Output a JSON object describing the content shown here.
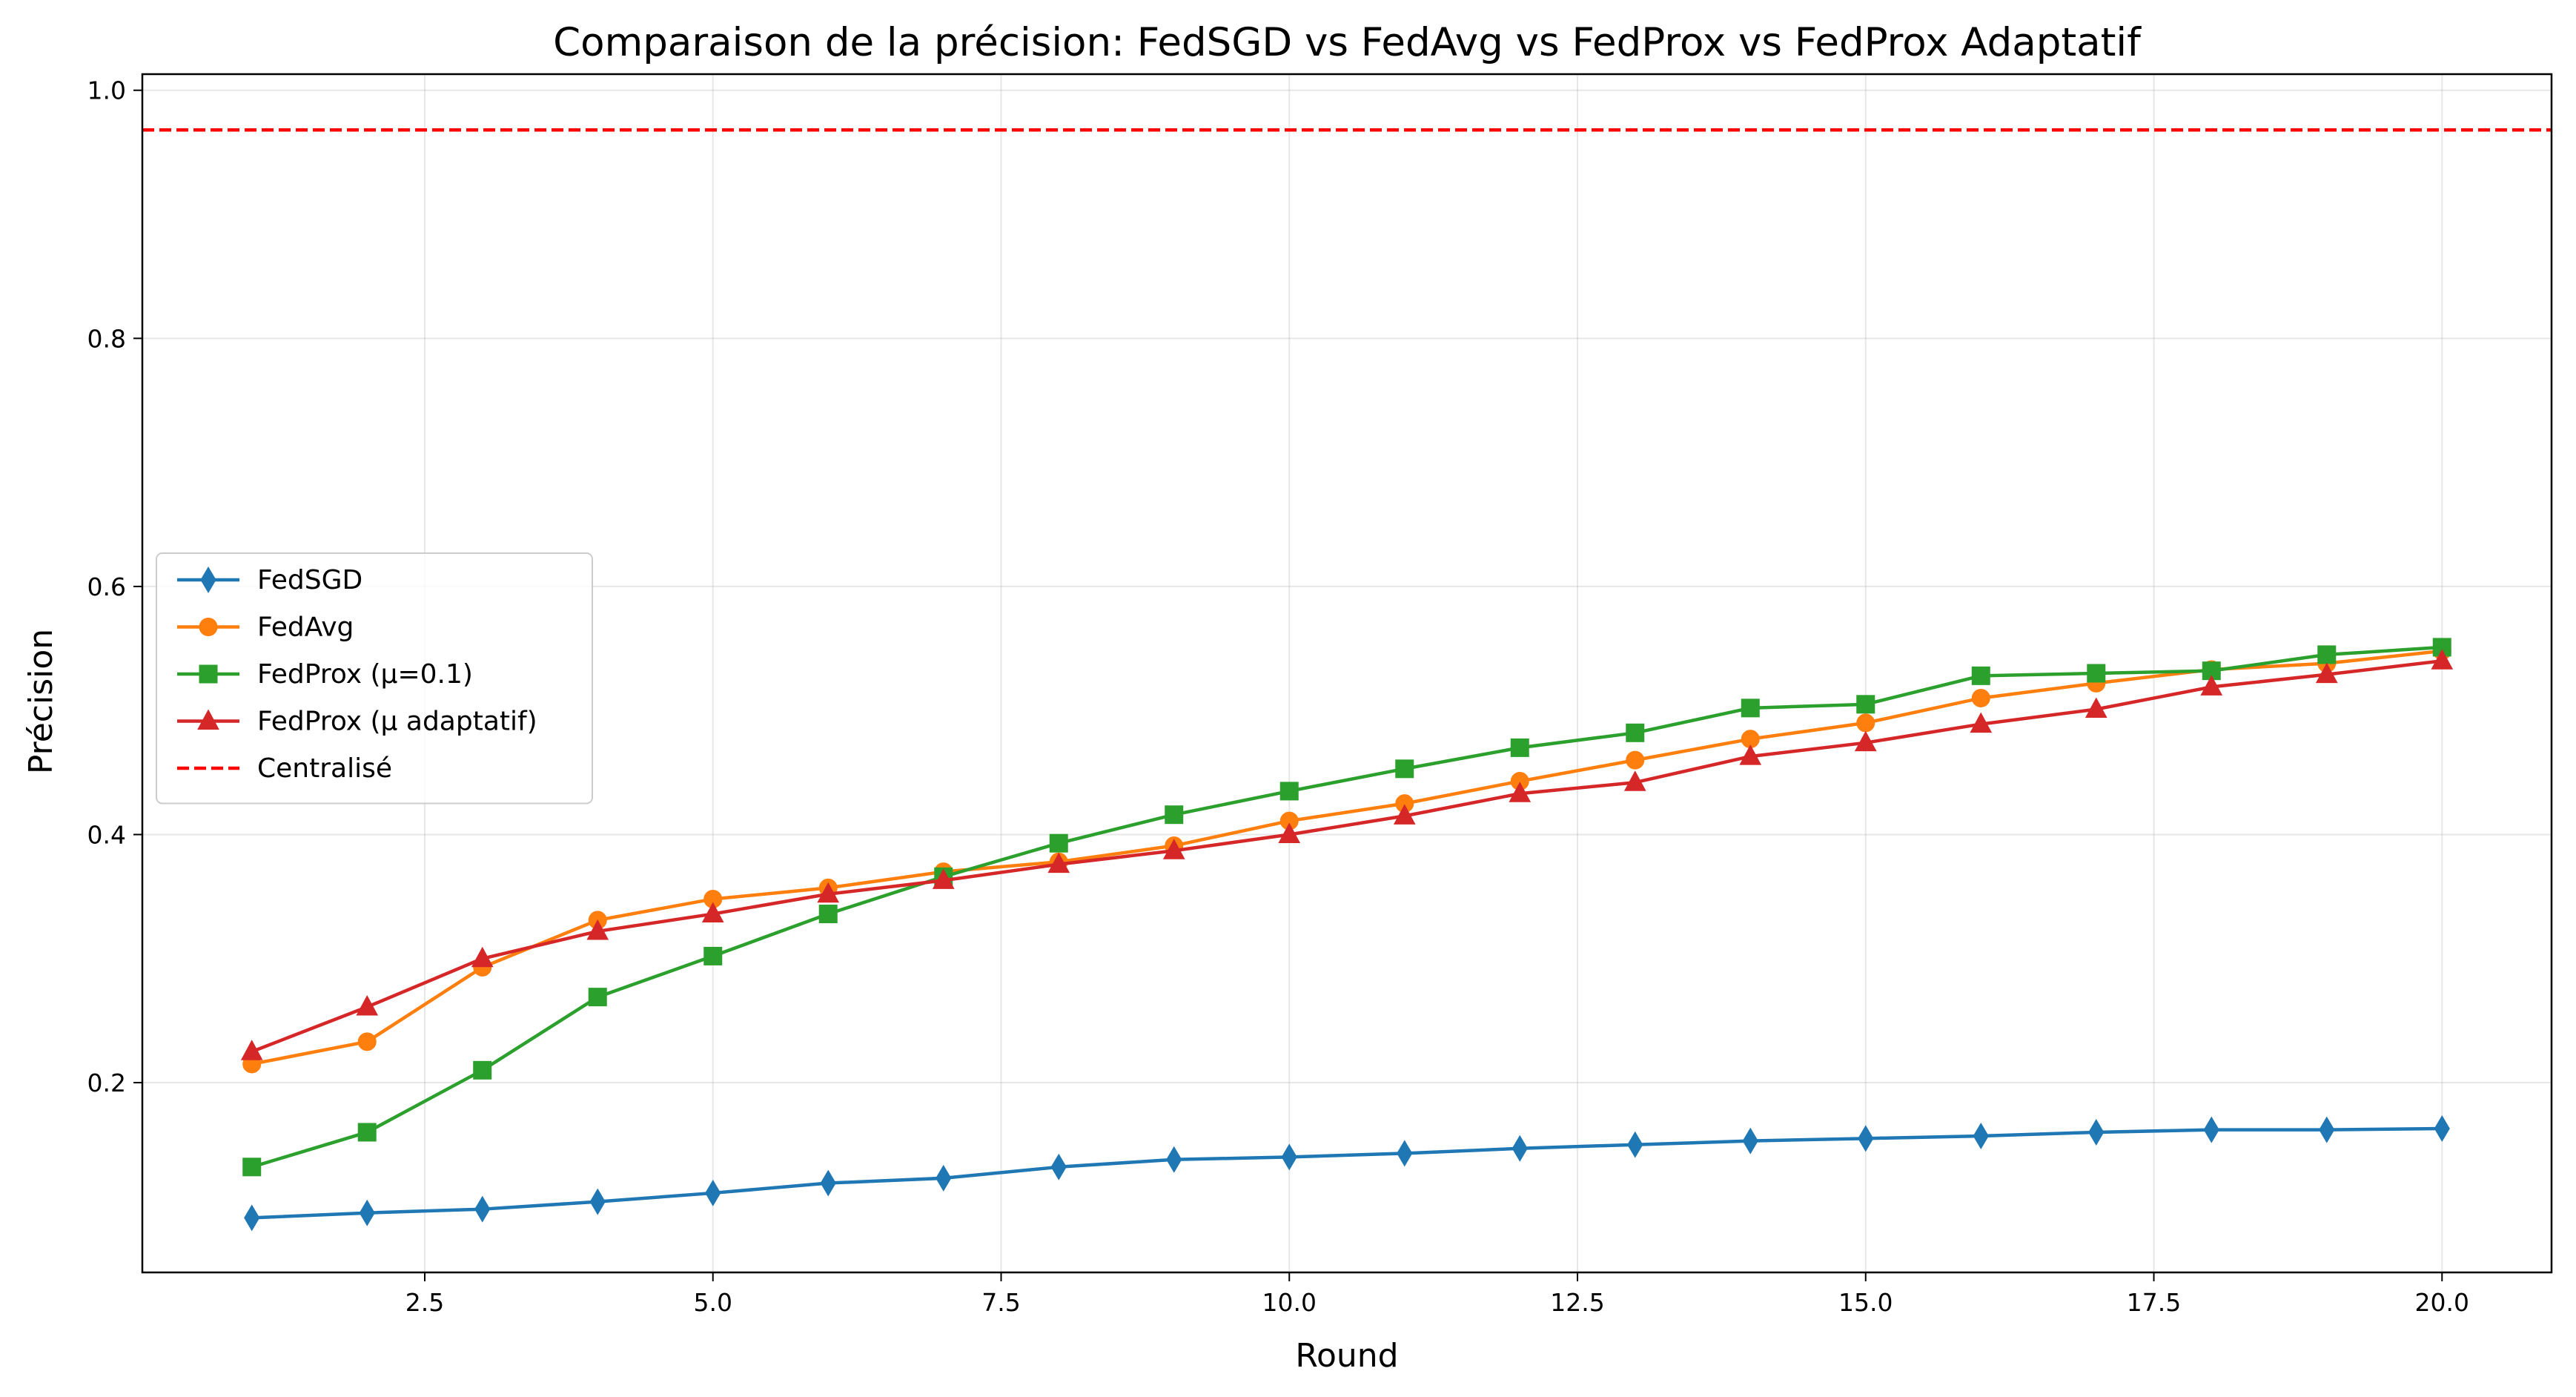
{
  "chart_data": {
    "type": "line",
    "title": "Comparaison de la précision: FedSGD vs FedAvg vs FedProx vs FedProx Adaptatif",
    "xlabel": "Round",
    "ylabel": "Précision",
    "xlim": [
      0.05,
      20.95
    ],
    "ylim": [
      0.047,
      1.013
    ],
    "xticks": [
      2.5,
      5.0,
      7.5,
      10.0,
      12.5,
      15.0,
      17.5,
      20.0
    ],
    "xtick_labels": [
      "2.5",
      "5.0",
      "7.5",
      "10.0",
      "12.5",
      "15.0",
      "17.5",
      "20.0"
    ],
    "yticks": [
      0.2,
      0.4,
      0.6,
      0.8,
      1.0
    ],
    "ytick_labels": [
      "0.2",
      "0.4",
      "0.6",
      "0.8",
      "1.0"
    ],
    "grid": true,
    "legend_position": "center-left",
    "x": [
      1,
      2,
      3,
      4,
      5,
      6,
      7,
      8,
      9,
      10,
      11,
      12,
      13,
      14,
      15,
      16,
      17,
      18,
      19,
      20
    ],
    "series": [
      {
        "name": "FedSGD",
        "color": "#1f77b4",
        "marker": "diamond",
        "values": [
          0.091,
          0.095,
          0.098,
          0.104,
          0.111,
          0.119,
          0.123,
          0.132,
          0.138,
          0.14,
          0.143,
          0.147,
          0.15,
          0.153,
          0.155,
          0.157,
          0.16,
          0.162,
          0.162,
          0.163
        ]
      },
      {
        "name": "FedAvg",
        "color": "#ff7f0e",
        "marker": "circle",
        "values": [
          0.215,
          0.233,
          0.293,
          0.331,
          0.348,
          0.357,
          0.37,
          0.378,
          0.391,
          0.411,
          0.425,
          0.443,
          0.46,
          0.477,
          0.49,
          0.51,
          0.522,
          0.533,
          0.538,
          0.548
        ]
      },
      {
        "name": "FedProx (μ=0.1)",
        "color": "#2ca02c",
        "marker": "square",
        "values": [
          0.132,
          0.16,
          0.21,
          0.269,
          0.302,
          0.336,
          0.366,
          0.393,
          0.416,
          0.435,
          0.453,
          0.47,
          0.482,
          0.502,
          0.505,
          0.528,
          0.53,
          0.532,
          0.545,
          0.551
        ]
      },
      {
        "name": "FedProx (μ adaptatif)",
        "color": "#d62728",
        "marker": "triangle",
        "values": [
          0.225,
          0.261,
          0.3,
          0.322,
          0.336,
          0.352,
          0.363,
          0.376,
          0.387,
          0.4,
          0.415,
          0.433,
          0.442,
          0.463,
          0.474,
          0.489,
          0.501,
          0.519,
          0.529,
          0.54
        ]
      }
    ],
    "reference_lines": [
      {
        "name": "Centralisé",
        "y": 0.968,
        "color": "#ff0000",
        "style": "dashed"
      }
    ]
  }
}
